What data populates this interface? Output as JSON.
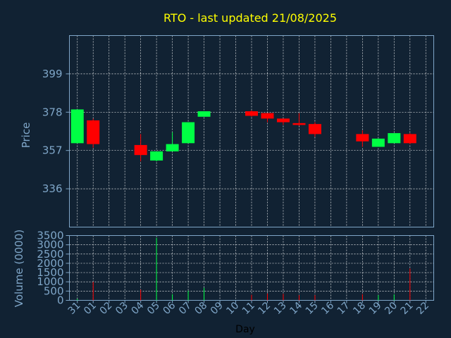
{
  "chart_data": [
    {
      "type": "candlestick",
      "title": "RTO - last updated 21/08/2025",
      "xlabel": "",
      "ylabel": "Price",
      "ylim": [
        315,
        420
      ],
      "yticks": [
        336,
        357,
        378,
        399
      ],
      "grid": true,
      "colors": {
        "up": "#00ff44",
        "down": "#ff0000",
        "grid": "#ffffff",
        "axis": "#7fa6c8",
        "title": "#ffff00",
        "background": "#112233"
      },
      "candles": [
        {
          "day": "31",
          "open": 361.0,
          "high": 379.5,
          "low": 361.0,
          "close": 379.5
        },
        {
          "day": "01",
          "open": 373.5,
          "high": 374.5,
          "low": 358.5,
          "close": 360.5
        },
        {
          "day": "04",
          "open": 360.0,
          "high": 366.0,
          "low": 351.0,
          "close": 354.5
        },
        {
          "day": "05",
          "open": 351.5,
          "high": 356.5,
          "low": 351.0,
          "close": 356.5
        },
        {
          "day": "06",
          "open": 356.5,
          "high": 367.0,
          "low": 356.5,
          "close": 360.5
        },
        {
          "day": "07",
          "open": 361.0,
          "high": 372.5,
          "low": 361.0,
          "close": 372.5
        },
        {
          "day": "08",
          "open": 375.5,
          "high": 378.5,
          "low": 375.5,
          "close": 378.5
        },
        {
          "day": "11",
          "open": 378.5,
          "high": 379.0,
          "low": 375.5,
          "close": 376.0
        },
        {
          "day": "12",
          "open": 377.5,
          "high": 377.5,
          "low": 372.5,
          "close": 374.5
        },
        {
          "day": "13",
          "open": 374.5,
          "high": 374.5,
          "low": 371.0,
          "close": 372.5
        },
        {
          "day": "14",
          "open": 372.0,
          "high": 377.5,
          "low": 370.5,
          "close": 371.0
        },
        {
          "day": "15",
          "open": 371.5,
          "high": 372.5,
          "low": 364.5,
          "close": 366.0
        },
        {
          "day": "18",
          "open": 366.0,
          "high": 368.0,
          "low": 359.0,
          "close": 362.0
        },
        {
          "day": "19",
          "open": 359.0,
          "high": 363.5,
          "low": 359.0,
          "close": 363.5
        },
        {
          "day": "20",
          "open": 361.0,
          "high": 366.5,
          "low": 361.0,
          "close": 366.5
        },
        {
          "day": "21",
          "open": 366.0,
          "high": 366.5,
          "low": 360.5,
          "close": 361.0
        }
      ]
    },
    {
      "type": "bar",
      "xlabel": "Day",
      "ylabel": "Volume (0000)",
      "ylim": [
        0,
        3500
      ],
      "yticks": [
        0,
        500,
        1000,
        1500,
        2000,
        2500,
        3000,
        3500
      ],
      "categories": [
        "31",
        "01",
        "02",
        "03",
        "04",
        "05",
        "06",
        "07",
        "08",
        "09",
        "10",
        "11",
        "12",
        "13",
        "14",
        "15",
        "16",
        "17",
        "18",
        "19",
        "20",
        "21",
        "22"
      ],
      "values": [
        80,
        1000,
        0,
        0,
        580,
        3380,
        330,
        520,
        680,
        0,
        0,
        300,
        370,
        350,
        280,
        280,
        0,
        0,
        330,
        280,
        320,
        1720,
        0
      ],
      "colors": [
        "#00ff44",
        "#ff0000",
        "#ff0000",
        "#ff0000",
        "#ff0000",
        "#00ff44",
        "#00ff44",
        "#00ff44",
        "#00ff44",
        "#ff0000",
        "#ff0000",
        "#ff0000",
        "#ff0000",
        "#ff0000",
        "#ff0000",
        "#ff0000",
        "#ff0000",
        "#ff0000",
        "#ff0000",
        "#00ff44",
        "#00ff44",
        "#ff0000",
        "#ff0000"
      ]
    }
  ]
}
